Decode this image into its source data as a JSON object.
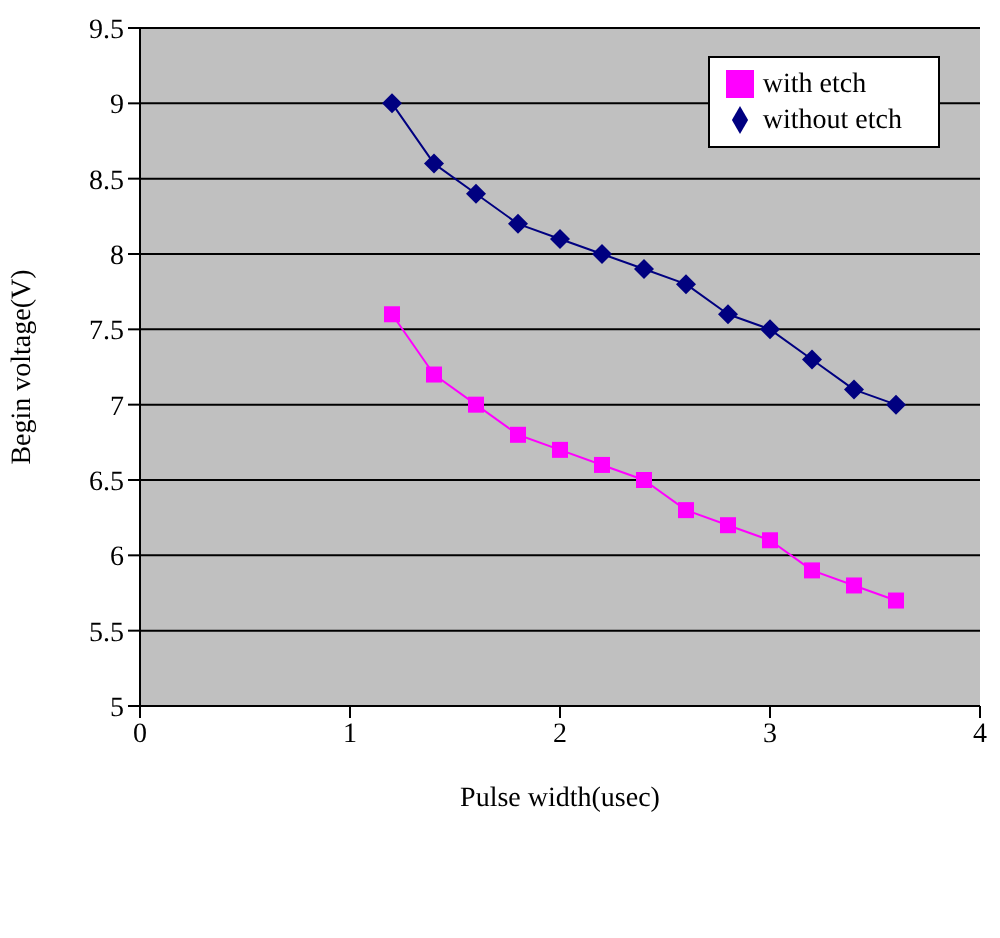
{
  "chart_data": {
    "type": "line",
    "xlabel": "Pulse width(usec)",
    "ylabel": "Begin voltage(V)",
    "x": [
      1.2,
      1.4,
      1.6,
      1.8,
      2.0,
      2.2,
      2.4,
      2.6,
      2.8,
      3.0,
      3.2,
      3.4,
      3.6
    ],
    "series": [
      {
        "name": "without etch",
        "color": "#000080",
        "marker": "diamond",
        "values": [
          9,
          8.6,
          8.4,
          8.2,
          8.1,
          8.0,
          7.9,
          7.8,
          7.6,
          7.5,
          7.3,
          7.1,
          7.0
        ]
      },
      {
        "name": "with etch",
        "color": "#ff00ff",
        "marker": "square",
        "values": [
          7.6,
          7.2,
          7.0,
          6.8,
          6.7,
          6.6,
          6.5,
          6.3,
          6.2,
          6.1,
          5.9,
          5.8,
          5.7
        ]
      }
    ],
    "xlim": [
      0,
      4
    ],
    "xticks": [
      0,
      1,
      2,
      3,
      4
    ],
    "ylim": [
      5,
      9.5
    ],
    "yticks": [
      5,
      5.5,
      6,
      6.5,
      7,
      7.5,
      8,
      8.5,
      9,
      9.5
    ],
    "grid": "y",
    "legend": "top right",
    "line_style": "solid"
  }
}
